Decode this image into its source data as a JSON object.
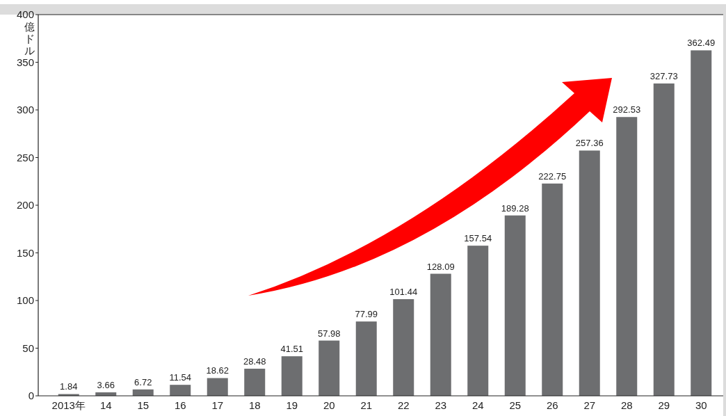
{
  "chart_data": {
    "type": "bar",
    "ylabel": "億ドル",
    "categories": [
      "2013年",
      "14",
      "15",
      "16",
      "17",
      "18",
      "19",
      "20",
      "21",
      "22",
      "23",
      "24",
      "25",
      "26",
      "27",
      "28",
      "29",
      "30"
    ],
    "values": [
      1.84,
      3.66,
      6.72,
      11.54,
      18.62,
      28.48,
      41.51,
      57.98,
      77.99,
      101.44,
      128.09,
      157.54,
      189.28,
      222.75,
      257.36,
      292.53,
      327.73,
      362.49
    ],
    "color": "#6d6e70",
    "ylim": [
      0,
      400
    ],
    "yticks": [
      0,
      50,
      100,
      150,
      200,
      250,
      300,
      350,
      400
    ],
    "data_labels": true,
    "grid": false
  }
}
